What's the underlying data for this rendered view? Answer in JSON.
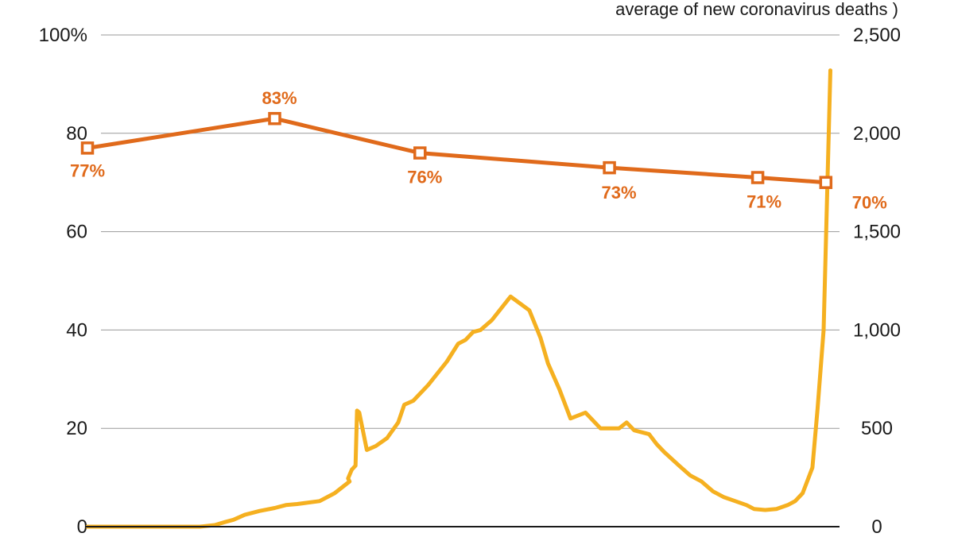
{
  "chart_data": {
    "type": "line",
    "header_note": "average of new coronavirus deaths )",
    "left_axis": {
      "ylim": [
        0,
        100
      ],
      "ticks": [
        {
          "value": 0,
          "label": "0"
        },
        {
          "value": 20,
          "label": "20"
        },
        {
          "value": 40,
          "label": "40"
        },
        {
          "value": 60,
          "label": "60"
        },
        {
          "value": 80,
          "label": "80"
        },
        {
          "value": 100,
          "label": "100%"
        }
      ]
    },
    "right_axis": {
      "ylim": [
        0,
        2500
      ],
      "ticks": [
        {
          "value": 0,
          "label": "0"
        },
        {
          "value": 500,
          "label": "500"
        },
        {
          "value": 1000,
          "label": "1,000"
        },
        {
          "value": 1500,
          "label": "1,500"
        },
        {
          "value": 2000,
          "label": "2,000"
        },
        {
          "value": 2500,
          "label": "2,500"
        }
      ]
    },
    "x_range": [
      0,
      100
    ],
    "grid": true,
    "series": [
      {
        "axis": "left",
        "color": "#E06A1B",
        "marker": "square",
        "points": [
          {
            "x": 0,
            "y": 77,
            "label": "77%"
          },
          {
            "x": 25,
            "y": 83,
            "label": "83%"
          },
          {
            "x": 44.4,
            "y": 76,
            "label": "76%"
          },
          {
            "x": 69.7,
            "y": 73,
            "label": "73%"
          },
          {
            "x": 89.5,
            "y": 71,
            "label": "71%"
          },
          {
            "x": 98.6,
            "y": 70,
            "label": "70%"
          }
        ]
      },
      {
        "axis": "right",
        "color": "#F5B020",
        "x": [
          0,
          15,
          17,
          18.5,
          19.5,
          21,
          23,
          25,
          26.5,
          28,
          31,
          33,
          35,
          34.8,
          35.3,
          35.8,
          36,
          36.3,
          37.3,
          38.5,
          40,
          41.5,
          42.3,
          43.5,
          45.5,
          48,
          49.5,
          50.5,
          51.5,
          52.5,
          54,
          56.5,
          59,
          60.5,
          61.5,
          63,
          64.5,
          66.5,
          68.5,
          71,
          72,
          73,
          75,
          76,
          77,
          79,
          80.5,
          82,
          83.5,
          85,
          86.5,
          88,
          89,
          90.5,
          92,
          93.5,
          94.5,
          95.5,
          96.8,
          97.5,
          98.3,
          99.2
        ],
        "y": [
          0,
          0,
          8,
          25,
          35,
          60,
          80,
          95,
          110,
          115,
          130,
          170,
          230,
          245,
          290,
          310,
          590,
          580,
          390,
          410,
          450,
          530,
          620,
          640,
          720,
          840,
          930,
          950,
          990,
          1000,
          1050,
          1170,
          1100,
          960,
          830,
          700,
          550,
          580,
          500,
          500,
          530,
          490,
          470,
          420,
          380,
          310,
          260,
          230,
          180,
          150,
          130,
          110,
          90,
          85,
          90,
          110,
          130,
          170,
          300,
          600,
          1000,
          2320
        ]
      }
    ]
  }
}
